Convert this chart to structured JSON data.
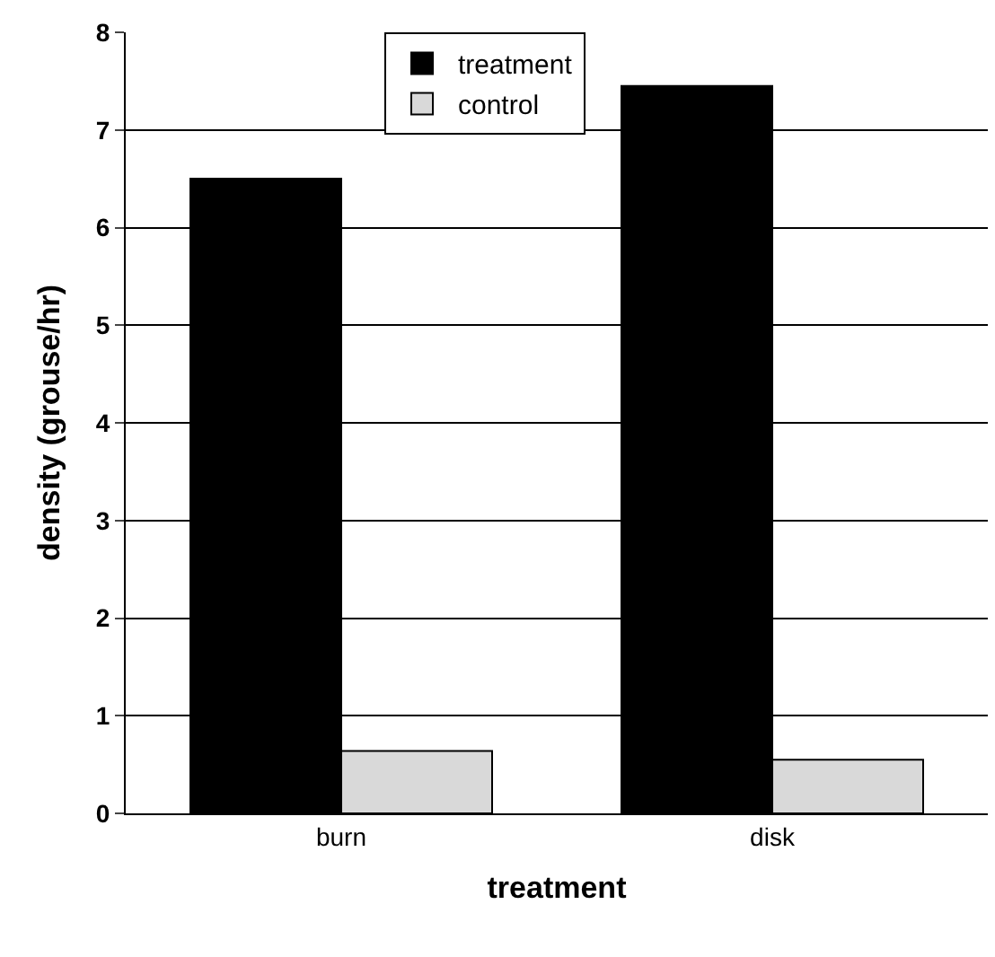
{
  "chart_data": {
    "type": "bar",
    "xlabel": "treatment",
    "ylabel": "density (grouse/hr)",
    "categories": [
      "burn",
      "disk"
    ],
    "series": [
      {
        "name": "treatment",
        "color": "#000000",
        "values": [
          6.5,
          7.45
        ]
      },
      {
        "name": "control",
        "color": "#d9d9d9",
        "values": [
          0.64,
          0.55
        ]
      }
    ],
    "ylim": [
      0,
      8
    ],
    "yticks": [
      0,
      1,
      2,
      3,
      4,
      5,
      6,
      7,
      8
    ],
    "grid": "y",
    "legend": "top"
  }
}
